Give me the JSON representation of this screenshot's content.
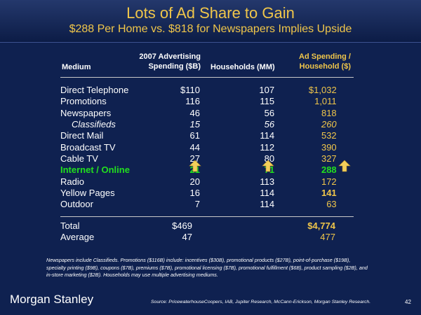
{
  "title": "Lots of Ad Share to Gain",
  "subtitle": "$288 Per Home vs. $818 for Newspapers Implies Upside",
  "columns": {
    "medium": "Medium",
    "spend_l1": "2007 Advertising",
    "spend_l2": "Spending ($B)",
    "households": "Households (MM)",
    "ad_l1": "Ad Spending /",
    "ad_l2": "Household ($)"
  },
  "rows": [
    {
      "medium": "Direct Telephone",
      "spend": "$110",
      "households": "107",
      "ad": "$1,032"
    },
    {
      "medium": "Promotions",
      "spend": "116",
      "households": "115",
      "ad": "1,011"
    },
    {
      "medium": "Newspapers",
      "spend": "46",
      "households": "56",
      "ad": "818"
    },
    {
      "medium": "Classifieds",
      "spend": "15",
      "households": "56",
      "ad": "260"
    },
    {
      "medium": "Direct Mail",
      "spend": "61",
      "households": "114",
      "ad": "532"
    },
    {
      "medium": "Broadcast TV",
      "spend": "44",
      "households": "112",
      "ad": "390"
    },
    {
      "medium": "Cable TV",
      "spend": "27",
      "households": "80",
      "ad": "327"
    },
    {
      "medium": "Internet / Online",
      "spend": "21",
      "households": "71",
      "ad": "288"
    },
    {
      "medium": "Radio",
      "spend": "20",
      "households": "113",
      "ad": "172"
    },
    {
      "medium": "Yellow Pages",
      "spend": "16",
      "households": "114",
      "ad": "141"
    },
    {
      "medium": "Outdoor",
      "spend": "7",
      "households": "114",
      "ad": "63"
    }
  ],
  "totals": [
    {
      "label": "Total",
      "spend": "$469",
      "ad": "$4,774"
    },
    {
      "label": "Average",
      "spend": "47",
      "ad": "477"
    }
  ],
  "footnote": "Newspapers include Classifieds. Promotions ($116B) include: incentives ($30B), promotional products ($27B), point-of-purchase ($19B), specialty printing ($9B), coupons ($7B), premiums ($7B), promotional licensing ($7B), promotional fulfillment ($6B), product sampling ($2B), and in-store marketing ($2B). Households may use multiple advertising mediums.",
  "logo": "Morgan Stanley",
  "source": "Source: PricewaterhouseCoopers, IAB, Jupiter Research, McCann-Erickson, Morgan Stanley Research.",
  "page_number": "42",
  "icons": {
    "highlight_arrow": "up-arrow-icon"
  },
  "colors": {
    "background": "#0f2150",
    "title": "#f0c64a",
    "highlight": "#22e01e",
    "arrow": "#f3cf5a"
  }
}
